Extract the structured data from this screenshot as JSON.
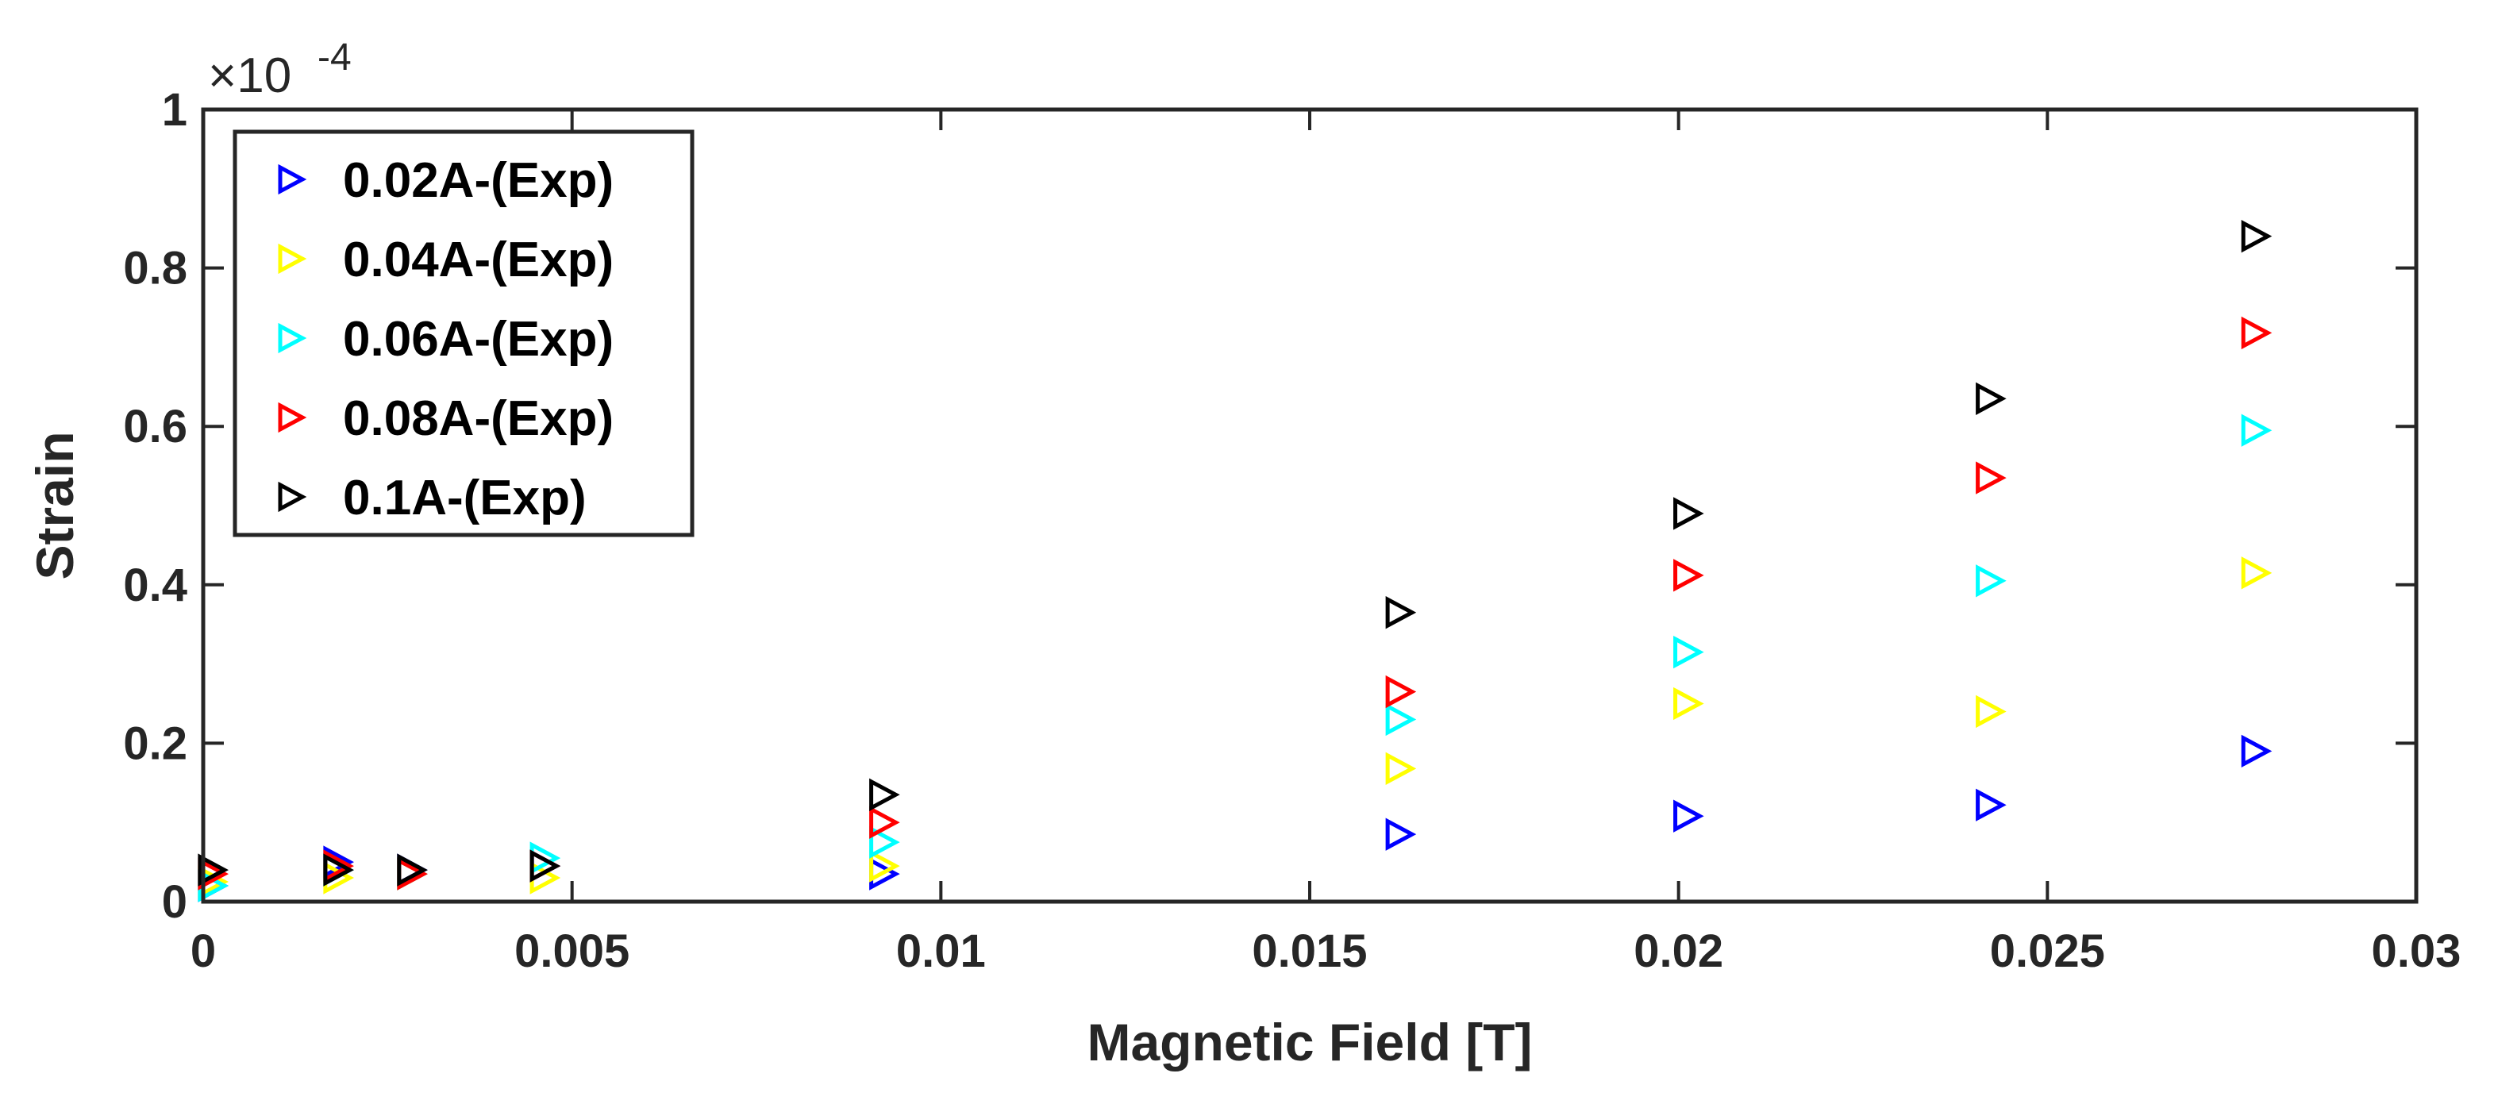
{
  "chart_data": {
    "type": "scatter",
    "xlabel": "Magnetic Field [T]",
    "ylabel": "Strain",
    "y_exponent": {
      "base": "×10",
      "power": "-4"
    },
    "xlim": [
      0,
      0.03
    ],
    "ylim": [
      0,
      1.0
    ],
    "xticks": [
      0,
      0.005,
      0.01,
      0.015,
      0.02,
      0.025,
      0.03
    ],
    "xtick_labels": [
      "0",
      "0.005",
      "0.01",
      "0.015",
      "0.02",
      "0.025",
      "0.03"
    ],
    "yticks": [
      0,
      0.2,
      0.4,
      0.6,
      0.8,
      1.0
    ],
    "ytick_labels": [
      "0",
      "0.2",
      "0.4",
      "0.6",
      "0.8",
      "1"
    ],
    "grid": false,
    "box": true,
    "legend_position": "top-left",
    "marker": "right-triangle-open",
    "x": [
      0,
      0.0017,
      0.0027,
      0.0045,
      0.0091,
      0.0161,
      0.02,
      0.0241,
      0.0277
    ],
    "series": [
      {
        "name": "0.02A-(Exp)",
        "color": "#0000ff",
        "values": [
          0.02,
          0.05,
          0.04,
          0.045,
          0.035,
          0.085,
          0.108,
          0.122,
          0.19
        ]
      },
      {
        "name": "0.04A-(Exp)",
        "color": "#ffff00",
        "values": [
          0.025,
          0.03,
          0.035,
          0.03,
          0.045,
          0.168,
          0.25,
          0.24,
          0.415
        ]
      },
      {
        "name": "0.06A-(Exp)",
        "color": "#00ffff",
        "values": [
          0.02,
          0.04,
          0.035,
          0.055,
          0.075,
          0.23,
          0.315,
          0.405,
          0.595
        ]
      },
      {
        "name": "0.08A-(Exp)",
        "color": "#ff0000",
        "values": [
          0.035,
          0.045,
          0.035,
          0.045,
          0.1,
          0.265,
          0.412,
          0.535,
          0.718
        ]
      },
      {
        "name": "0.1A-(Exp)",
        "color": "#000000",
        "values": [
          0.04,
          0.04,
          0.04,
          0.045,
          0.135,
          0.365,
          0.49,
          0.635,
          0.84
        ]
      }
    ]
  }
}
